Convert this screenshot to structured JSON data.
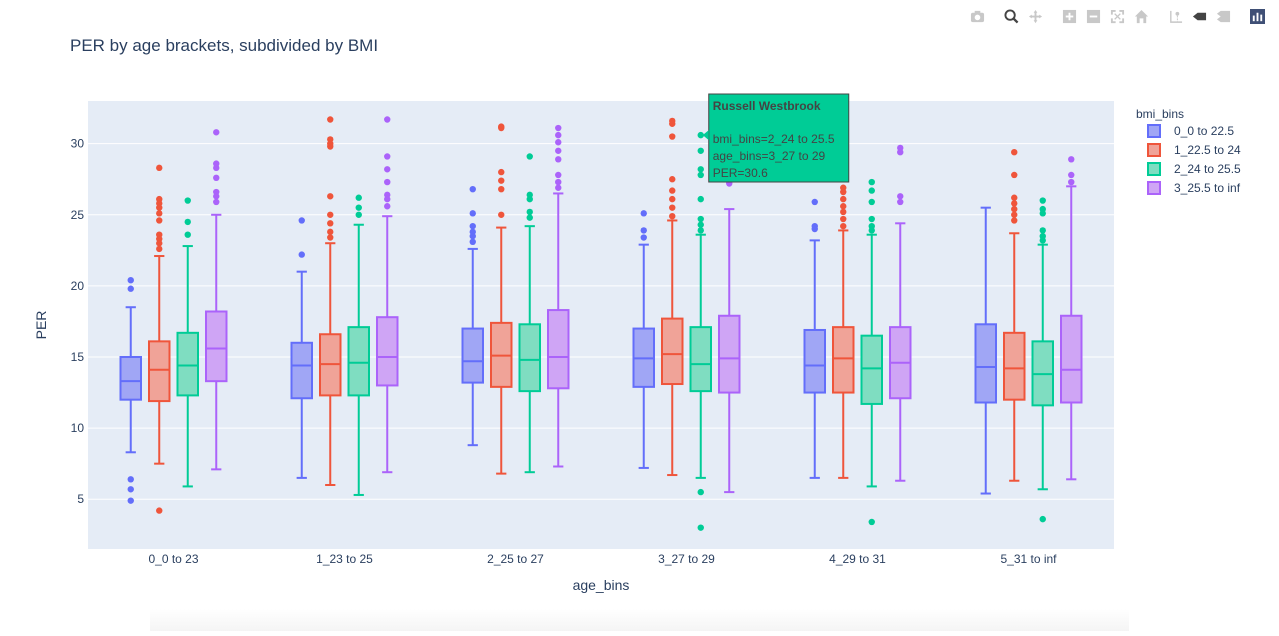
{
  "title": "PER by age brackets, subdivided by BMI",
  "colors": {
    "plot_bg": "#e5ecf6",
    "grid": "#ffffff",
    "text": "#2a3f5f",
    "tooltip_bg": "#00cc96",
    "modebar_icon": "#c8c8c8"
  },
  "modebar": [
    "camera-icon",
    "zoom-icon",
    "pan-icon",
    "zoom-in-icon",
    "zoom-out-icon",
    "autoscale-icon",
    "home-icon",
    "spike-lines-icon",
    "hover-closest-icon",
    "hover-compare-icon",
    "plotly-logo-icon"
  ],
  "tooltip": {
    "title": "Russell Westbrook",
    "lines": [
      "bmi_bins=2_24 to 25.5",
      "age_bins=3_27 to 29",
      "PER=30.6"
    ],
    "point": {
      "category": "3_27 to 29",
      "series": "2_24 to 25.5",
      "value": 30.6
    }
  },
  "chart_data": {
    "type": "box",
    "title": "PER by age brackets, subdivided by BMI",
    "xlabel": "age_bins",
    "ylabel": "PER",
    "ylim": [
      1.5,
      33.0
    ],
    "yticks": [
      5,
      10,
      15,
      20,
      25,
      30
    ],
    "grid": true,
    "legend": {
      "title": "bmi_bins",
      "position": "top-right"
    },
    "categories": [
      "0_0 to 23",
      "1_23 to 25",
      "2_25 to 27",
      "3_27 to 29",
      "4_29 to 31",
      "5_31 to inf"
    ],
    "series": [
      {
        "name": "0_0 to 22.5",
        "color": "#636efa",
        "fill": "#a0a6f5",
        "boxes": [
          {
            "q1": 12.0,
            "median": 13.3,
            "q3": 15.0,
            "low": 8.3,
            "high": 18.5,
            "outliers": [
              20.4,
              19.8,
              6.4,
              5.7,
              4.9
            ]
          },
          {
            "q1": 12.1,
            "median": 14.4,
            "q3": 16.0,
            "low": 6.5,
            "high": 21.0,
            "outliers": [
              24.6,
              22.2
            ]
          },
          {
            "q1": 13.2,
            "median": 14.7,
            "q3": 17.0,
            "low": 8.8,
            "high": 22.6,
            "outliers": [
              26.8,
              25.1,
              24.2,
              23.8,
              23.5,
              23.1
            ]
          },
          {
            "q1": 12.9,
            "median": 14.9,
            "q3": 17.0,
            "low": 7.2,
            "high": 22.9,
            "outliers": [
              25.1,
              23.9,
              23.4
            ]
          },
          {
            "q1": 12.5,
            "median": 14.4,
            "q3": 16.9,
            "low": 6.5,
            "high": 23.2,
            "outliers": [
              25.9,
              24.2,
              24.0
            ]
          },
          {
            "q1": 11.8,
            "median": 14.3,
            "q3": 17.3,
            "low": 5.4,
            "high": 25.5,
            "outliers": []
          }
        ]
      },
      {
        "name": "1_22.5 to 24",
        "color": "#ef553b",
        "fill": "#f0a398",
        "boxes": [
          {
            "q1": 11.9,
            "median": 14.1,
            "q3": 16.1,
            "low": 7.5,
            "high": 22.1,
            "outliers": [
              28.3,
              26.1,
              25.8,
              25.5,
              25.1,
              24.6,
              23.6,
              23.3,
              23.0,
              22.6,
              4.2
            ]
          },
          {
            "q1": 12.3,
            "median": 14.5,
            "q3": 16.6,
            "low": 6.0,
            "high": 23.0,
            "outliers": [
              31.7,
              30.3,
              30.0,
              29.8,
              26.3,
              25.0,
              24.4,
              23.8,
              23.4
            ]
          },
          {
            "q1": 12.9,
            "median": 15.1,
            "q3": 17.4,
            "low": 6.8,
            "high": 24.1,
            "outliers": [
              31.2,
              31.1,
              28.0,
              27.4,
              26.8,
              25.0
            ]
          },
          {
            "q1": 13.1,
            "median": 15.2,
            "q3": 17.7,
            "low": 6.7,
            "high": 24.6,
            "outliers": [
              31.6,
              31.4,
              30.5,
              27.5,
              26.7,
              26.1,
              25.5,
              24.9
            ]
          },
          {
            "q1": 12.5,
            "median": 14.9,
            "q3": 17.1,
            "low": 6.5,
            "high": 23.9,
            "outliers": [
              26.9,
              26.6,
              26.1,
              25.6,
              25.2,
              24.7,
              24.2
            ]
          },
          {
            "q1": 12.0,
            "median": 14.2,
            "q3": 16.7,
            "low": 6.3,
            "high": 23.7,
            "outliers": [
              29.4,
              27.8,
              26.2,
              25.8,
              25.4,
              25.0,
              24.6
            ]
          }
        ]
      },
      {
        "name": "2_24 to 25.5",
        "color": "#00cc96",
        "fill": "#7fddc1",
        "boxes": [
          {
            "q1": 12.3,
            "median": 14.4,
            "q3": 16.7,
            "low": 5.9,
            "high": 22.8,
            "outliers": [
              26.0,
              24.5,
              23.6
            ]
          },
          {
            "q1": 12.3,
            "median": 14.6,
            "q3": 17.1,
            "low": 5.3,
            "high": 24.3,
            "outliers": [
              26.2,
              25.5,
              25.0
            ]
          },
          {
            "q1": 12.6,
            "median": 14.8,
            "q3": 17.3,
            "low": 6.9,
            "high": 24.2,
            "outliers": [
              29.1,
              26.4,
              26.1,
              25.2,
              24.8
            ]
          },
          {
            "q1": 12.6,
            "median": 14.5,
            "q3": 17.1,
            "low": 6.5,
            "high": 23.6,
            "outliers": [
              30.6,
              29.5,
              28.2,
              27.8,
              26.1,
              24.7,
              24.3,
              23.9,
              5.5,
              3.0
            ]
          },
          {
            "q1": 11.7,
            "median": 14.2,
            "q3": 16.5,
            "low": 5.9,
            "high": 23.6,
            "outliers": [
              27.3,
              26.7,
              25.9,
              24.7,
              24.2,
              23.9,
              3.4
            ]
          },
          {
            "q1": 11.6,
            "median": 13.8,
            "q3": 16.1,
            "low": 5.7,
            "high": 22.9,
            "outliers": [
              26.0,
              25.4,
              25.1,
              23.9,
              23.5,
              23.2,
              3.6
            ]
          }
        ]
      },
      {
        "name": "3_25.5 to inf",
        "color": "#ab63fa",
        "fill": "#cfa5f5",
        "boxes": [
          {
            "q1": 13.3,
            "median": 15.6,
            "q3": 18.2,
            "low": 7.1,
            "high": 25.0,
            "outliers": [
              30.8,
              28.6,
              28.3,
              27.6,
              26.6,
              26.3,
              25.9
            ]
          },
          {
            "q1": 13.0,
            "median": 15.0,
            "q3": 17.8,
            "low": 6.9,
            "high": 24.9,
            "outliers": [
              31.7,
              29.1,
              28.2,
              27.3,
              26.4,
              26.1,
              25.6
            ]
          },
          {
            "q1": 12.8,
            "median": 15.0,
            "q3": 18.3,
            "low": 7.3,
            "high": 26.5,
            "outliers": [
              31.1,
              30.6,
              30.1,
              29.5,
              28.9,
              27.8,
              27.3,
              26.9
            ]
          },
          {
            "q1": 12.5,
            "median": 14.9,
            "q3": 17.9,
            "low": 5.5,
            "high": 25.4,
            "outliers": [
              28.6,
              27.5,
              27.2
            ]
          },
          {
            "q1": 12.1,
            "median": 14.6,
            "q3": 17.1,
            "low": 6.3,
            "high": 24.4,
            "outliers": [
              29.7,
              29.4,
              26.3,
              25.9
            ]
          },
          {
            "q1": 11.8,
            "median": 14.1,
            "q3": 17.9,
            "low": 6.4,
            "high": 27.0,
            "outliers": [
              28.9,
              27.8,
              27.3
            ]
          }
        ]
      }
    ]
  }
}
